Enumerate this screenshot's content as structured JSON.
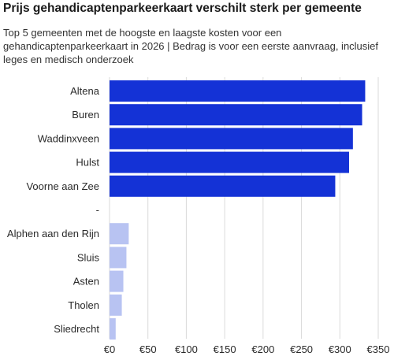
{
  "title": "Prijs gehandicaptenparkeerkaart verschilt sterk per gemeente",
  "subtitle": "Top 5 gemeenten met de hoogste en laagste kosten voor een gehandicaptenparkeerkaart in 2026 | Bedrag is voor een eerste aanvraag, inclusief leges en medisch onderzoek",
  "chart_data": {
    "type": "bar",
    "orientation": "horizontal",
    "categories": [
      "Altena",
      "Buren",
      "Waddinxveen",
      "Hulst",
      "Voorne aan Zee",
      "-",
      "Alphen aan den Rijn",
      "Sluis",
      "Asten",
      "Tholen",
      "Sliedrecht"
    ],
    "values": [
      333,
      329,
      317,
      312,
      294,
      null,
      25,
      22,
      18,
      16,
      8
    ],
    "colors": [
      "#1432d6",
      "#1432d6",
      "#1432d6",
      "#1432d6",
      "#1432d6",
      null,
      "#b8c3f2",
      "#b8c3f2",
      "#b8c3f2",
      "#b8c3f2",
      "#b8c3f2"
    ],
    "xlim": [
      0,
      350
    ],
    "xticks": [
      0,
      50,
      100,
      150,
      200,
      250,
      300,
      350
    ],
    "xtick_labels": [
      "€0",
      "€50",
      "€100",
      "€150",
      "€200",
      "€250",
      "€300",
      "€350"
    ],
    "grid": true
  }
}
